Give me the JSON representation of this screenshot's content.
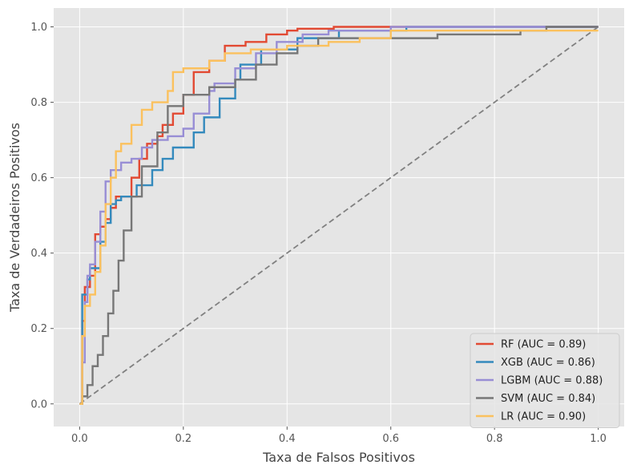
{
  "chart_data": {
    "type": "line",
    "title": "",
    "xlabel": "Taxa de Falsos Positivos",
    "ylabel": "Taxa de Verdadeiros Positivos",
    "xlim": [
      -0.05,
      1.05
    ],
    "ylim": [
      -0.06,
      1.05
    ],
    "xticks": [
      0.0,
      0.2,
      0.4,
      0.6,
      0.8,
      1.0
    ],
    "yticks": [
      0.0,
      0.2,
      0.4,
      0.6,
      0.8,
      1.0
    ],
    "xtick_labels": [
      "0.0",
      "0.2",
      "0.4",
      "0.6",
      "0.8",
      "1.0"
    ],
    "ytick_labels": [
      "0.0",
      "0.2",
      "0.4",
      "0.6",
      "0.8",
      "1.0"
    ],
    "grid": true,
    "legend_position": "bottom-right",
    "diagonal": {
      "x": [
        0,
        1
      ],
      "y": [
        0,
        1
      ],
      "color": "#808080",
      "style": "dashed"
    },
    "series": [
      {
        "name": "RF (AUC = 0.89)",
        "color": "#e24a33",
        "x": [
          0.0,
          0.005,
          0.005,
          0.01,
          0.01,
          0.02,
          0.02,
          0.03,
          0.03,
          0.04,
          0.04,
          0.05,
          0.05,
          0.06,
          0.06,
          0.07,
          0.07,
          0.1,
          0.1,
          0.115,
          0.115,
          0.13,
          0.13,
          0.15,
          0.15,
          0.16,
          0.16,
          0.18,
          0.18,
          0.2,
          0.2,
          0.22,
          0.22,
          0.25,
          0.25,
          0.28,
          0.28,
          0.32,
          0.32,
          0.36,
          0.36,
          0.4,
          0.4,
          0.42,
          0.42,
          0.49,
          0.49,
          0.57,
          0.57,
          1.0
        ],
        "y": [
          0.0,
          0.0,
          0.22,
          0.22,
          0.31,
          0.31,
          0.34,
          0.34,
          0.45,
          0.45,
          0.47,
          0.47,
          0.49,
          0.49,
          0.52,
          0.52,
          0.55,
          0.55,
          0.6,
          0.6,
          0.65,
          0.65,
          0.69,
          0.69,
          0.71,
          0.71,
          0.74,
          0.74,
          0.77,
          0.77,
          0.82,
          0.82,
          0.88,
          0.88,
          0.91,
          0.91,
          0.95,
          0.95,
          0.96,
          0.96,
          0.98,
          0.98,
          0.99,
          0.99,
          0.995,
          0.995,
          1.0,
          1.0,
          1.0,
          1.0
        ]
      },
      {
        "name": "XGB (AUC = 0.86)",
        "color": "#348abd",
        "x": [
          0.0,
          0.005,
          0.005,
          0.015,
          0.015,
          0.02,
          0.02,
          0.04,
          0.04,
          0.05,
          0.05,
          0.06,
          0.06,
          0.07,
          0.07,
          0.08,
          0.08,
          0.11,
          0.11,
          0.14,
          0.14,
          0.16,
          0.16,
          0.18,
          0.18,
          0.22,
          0.22,
          0.24,
          0.24,
          0.27,
          0.27,
          0.3,
          0.3,
          0.31,
          0.31,
          0.35,
          0.35,
          0.42,
          0.42,
          0.5,
          0.5,
          0.63,
          0.63,
          1.0
        ],
        "y": [
          0.0,
          0.0,
          0.29,
          0.29,
          0.33,
          0.33,
          0.36,
          0.36,
          0.43,
          0.43,
          0.48,
          0.48,
          0.53,
          0.53,
          0.54,
          0.54,
          0.55,
          0.55,
          0.58,
          0.58,
          0.62,
          0.62,
          0.65,
          0.65,
          0.68,
          0.68,
          0.72,
          0.72,
          0.76,
          0.76,
          0.81,
          0.81,
          0.86,
          0.86,
          0.9,
          0.9,
          0.94,
          0.94,
          0.97,
          0.97,
          0.99,
          0.99,
          1.0,
          1.0
        ]
      },
      {
        "name": "LGBM (AUC = 0.88)",
        "color": "#988ed5",
        "x": [
          0.0,
          0.005,
          0.005,
          0.01,
          0.01,
          0.015,
          0.015,
          0.02,
          0.02,
          0.03,
          0.03,
          0.04,
          0.04,
          0.05,
          0.05,
          0.06,
          0.06,
          0.08,
          0.08,
          0.1,
          0.1,
          0.12,
          0.12,
          0.14,
          0.14,
          0.17,
          0.17,
          0.2,
          0.2,
          0.22,
          0.22,
          0.25,
          0.25,
          0.26,
          0.26,
          0.3,
          0.3,
          0.34,
          0.34,
          0.38,
          0.38,
          0.43,
          0.43,
          0.48,
          0.48,
          0.6,
          0.6,
          0.86,
          0.86,
          1.0
        ],
        "y": [
          0.0,
          0.0,
          0.11,
          0.11,
          0.27,
          0.27,
          0.34,
          0.34,
          0.37,
          0.37,
          0.43,
          0.43,
          0.51,
          0.51,
          0.59,
          0.59,
          0.62,
          0.62,
          0.64,
          0.64,
          0.65,
          0.65,
          0.68,
          0.68,
          0.7,
          0.7,
          0.71,
          0.71,
          0.73,
          0.73,
          0.77,
          0.77,
          0.83,
          0.83,
          0.85,
          0.85,
          0.89,
          0.89,
          0.93,
          0.93,
          0.96,
          0.96,
          0.98,
          0.98,
          0.99,
          0.99,
          1.0,
          1.0,
          1.0,
          1.0
        ]
      },
      {
        "name": "SVM (AUC = 0.84)",
        "color": "#777777",
        "x": [
          0.0,
          0.005,
          0.005,
          0.015,
          0.015,
          0.025,
          0.025,
          0.035,
          0.035,
          0.045,
          0.045,
          0.055,
          0.055,
          0.065,
          0.065,
          0.075,
          0.075,
          0.085,
          0.085,
          0.1,
          0.1,
          0.12,
          0.12,
          0.15,
          0.15,
          0.17,
          0.17,
          0.2,
          0.2,
          0.25,
          0.25,
          0.3,
          0.3,
          0.34,
          0.34,
          0.38,
          0.38,
          0.42,
          0.42,
          0.46,
          0.46,
          0.69,
          0.69,
          0.85,
          0.85,
          0.9,
          0.9,
          1.0
        ],
        "y": [
          0.0,
          0.0,
          0.02,
          0.02,
          0.05,
          0.05,
          0.1,
          0.1,
          0.13,
          0.13,
          0.18,
          0.18,
          0.24,
          0.24,
          0.3,
          0.3,
          0.38,
          0.38,
          0.46,
          0.46,
          0.55,
          0.55,
          0.63,
          0.63,
          0.72,
          0.72,
          0.79,
          0.79,
          0.82,
          0.82,
          0.84,
          0.84,
          0.86,
          0.86,
          0.9,
          0.9,
          0.93,
          0.93,
          0.95,
          0.95,
          0.97,
          0.97,
          0.98,
          0.98,
          0.99,
          0.99,
          1.0,
          1.0
        ]
      },
      {
        "name": "LR (AUC = 0.90)",
        "color": "#fbc15e",
        "x": [
          0.0,
          0.005,
          0.005,
          0.01,
          0.01,
          0.02,
          0.02,
          0.03,
          0.03,
          0.04,
          0.04,
          0.05,
          0.05,
          0.06,
          0.06,
          0.07,
          0.07,
          0.08,
          0.08,
          0.1,
          0.1,
          0.12,
          0.12,
          0.14,
          0.14,
          0.17,
          0.17,
          0.18,
          0.18,
          0.2,
          0.2,
          0.25,
          0.25,
          0.28,
          0.28,
          0.33,
          0.33,
          0.4,
          0.4,
          0.48,
          0.48,
          0.54,
          0.54,
          0.6,
          0.6,
          1.0
        ],
        "y": [
          0.0,
          0.0,
          0.18,
          0.18,
          0.26,
          0.26,
          0.29,
          0.29,
          0.35,
          0.35,
          0.42,
          0.42,
          0.53,
          0.53,
          0.6,
          0.6,
          0.67,
          0.67,
          0.69,
          0.69,
          0.74,
          0.74,
          0.78,
          0.78,
          0.8,
          0.8,
          0.83,
          0.83,
          0.88,
          0.88,
          0.89,
          0.89,
          0.91,
          0.91,
          0.93,
          0.93,
          0.94,
          0.94,
          0.95,
          0.95,
          0.96,
          0.96,
          0.97,
          0.97,
          0.99,
          0.99
        ]
      }
    ]
  }
}
